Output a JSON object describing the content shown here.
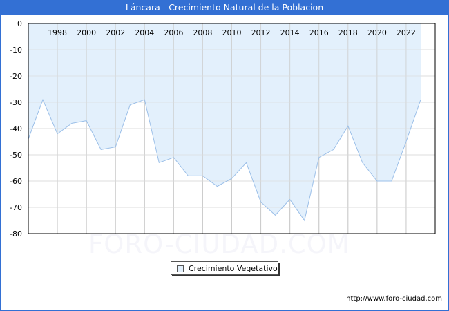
{
  "header": {
    "title": "Láncara - Crecimiento Natural de la Poblacion"
  },
  "legend": {
    "items": [
      {
        "label": "Crecimiento Vegetativo",
        "color": "#e3f0fc",
        "border": "#555555"
      }
    ]
  },
  "watermark": "FORO-CIUDAD.COM",
  "footer": {
    "url": "http://www.foro-ciudad.com"
  },
  "colors": {
    "title_bar": "#3370d4",
    "area_fill": "#e3f0fc",
    "line": "#9bbfe8",
    "grid": "#dddddd",
    "grid_vertical": "#cccccc"
  },
  "chart_data": {
    "type": "area",
    "title": "Láncara - Crecimiento Natural de la Poblacion",
    "xlabel": "",
    "ylabel": "",
    "x": [
      1996,
      1997,
      1998,
      1999,
      2000,
      2001,
      2002,
      2003,
      2004,
      2005,
      2006,
      2007,
      2008,
      2009,
      2010,
      2011,
      2012,
      2013,
      2014,
      2015,
      2016,
      2017,
      2018,
      2019,
      2020,
      2021,
      2022,
      2023
    ],
    "series": [
      {
        "name": "Crecimiento Vegetativo",
        "values": [
          -44,
          -29,
          -42,
          -38,
          -37,
          -48,
          -47,
          -31,
          -29,
          -53,
          -51,
          -58,
          -58,
          -62,
          -59,
          -53,
          -68,
          -73,
          -67,
          -75,
          -51,
          -48,
          -39,
          -53,
          -60,
          -60,
          -45,
          -29
        ]
      }
    ],
    "x_tick_labels": [
      "1998",
      "2000",
      "2002",
      "2004",
      "2006",
      "2008",
      "2010",
      "2012",
      "2014",
      "2016",
      "2018",
      "2020",
      "2022"
    ],
    "y_tick_labels": [
      "0",
      "-10",
      "-20",
      "-30",
      "-40",
      "-50",
      "-60",
      "-70",
      "-80"
    ],
    "ylim": [
      -80,
      0
    ],
    "xlim": [
      1996,
      2024
    ],
    "grid": true,
    "legend_position": "bottom-center"
  }
}
